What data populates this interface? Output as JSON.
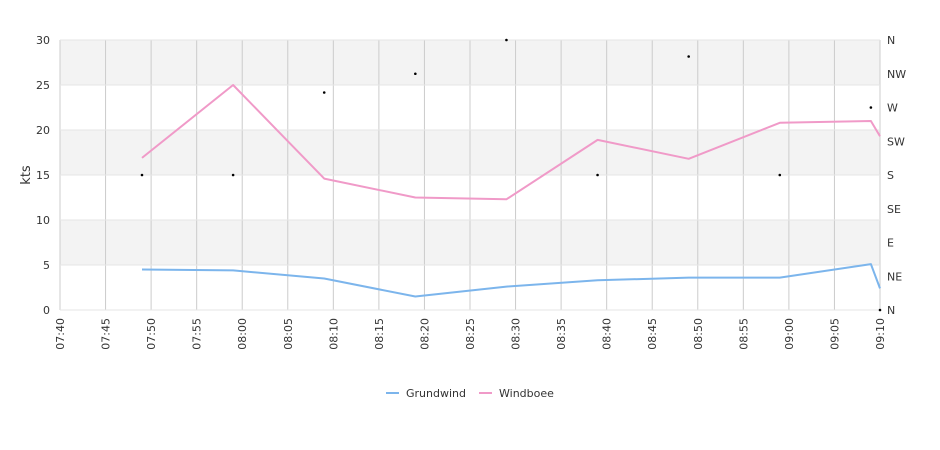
{
  "chart_data": {
    "type": "line",
    "title": "",
    "xlabel": "",
    "ylabel": "kts",
    "ylim": [
      0,
      30
    ],
    "y_ticks": [
      "0",
      "5",
      "10",
      "15",
      "20",
      "25",
      "30"
    ],
    "x_ticks": [
      "07:40",
      "07:45",
      "07:50",
      "07:55",
      "08:00",
      "08:05",
      "08:10",
      "08:15",
      "08:20",
      "08:25",
      "08:30",
      "08:35",
      "08:40",
      "08:45",
      "08:50",
      "08:55",
      "09:00",
      "09:05",
      "09:10"
    ],
    "direction_ticks": [
      "N",
      "NE",
      "E",
      "SE",
      "S",
      "SW",
      "W",
      "NW",
      "N"
    ],
    "xlim": [
      "07:40",
      "09:10"
    ],
    "grid": true,
    "legend_position": "bottom",
    "series": [
      {
        "name": "Grundwind",
        "color": "#7cb5ec",
        "points": [
          [
            "07:49",
            4.5
          ],
          [
            "07:59",
            4.4
          ],
          [
            "08:09",
            3.5
          ],
          [
            "08:19",
            1.5
          ],
          [
            "08:29",
            2.6
          ],
          [
            "08:39",
            3.3
          ],
          [
            "08:49",
            3.6
          ],
          [
            "08:59",
            3.6
          ],
          [
            "09:09",
            5.1
          ],
          [
            "09:10",
            2.4
          ]
        ]
      },
      {
        "name": "Windboee",
        "color": "#f09ac8",
        "points": [
          [
            "07:49",
            16.9
          ],
          [
            "07:59",
            25.0
          ],
          [
            "08:09",
            14.6
          ],
          [
            "08:19",
            12.5
          ],
          [
            "08:29",
            12.3
          ],
          [
            "08:39",
            18.9
          ],
          [
            "08:49",
            16.8
          ],
          [
            "08:59",
            20.8
          ],
          [
            "09:09",
            21.0
          ],
          [
            "09:10",
            19.3
          ]
        ]
      }
    ],
    "direction_points": [
      [
        "07:49",
        180
      ],
      [
        "07:59",
        180
      ],
      [
        "08:09",
        290
      ],
      [
        "08:19",
        315
      ],
      [
        "08:29",
        360
      ],
      [
        "08:39",
        180
      ],
      [
        "08:49",
        338
      ],
      [
        "08:59",
        180
      ],
      [
        "09:09",
        270
      ],
      [
        "09:10",
        0
      ]
    ]
  }
}
